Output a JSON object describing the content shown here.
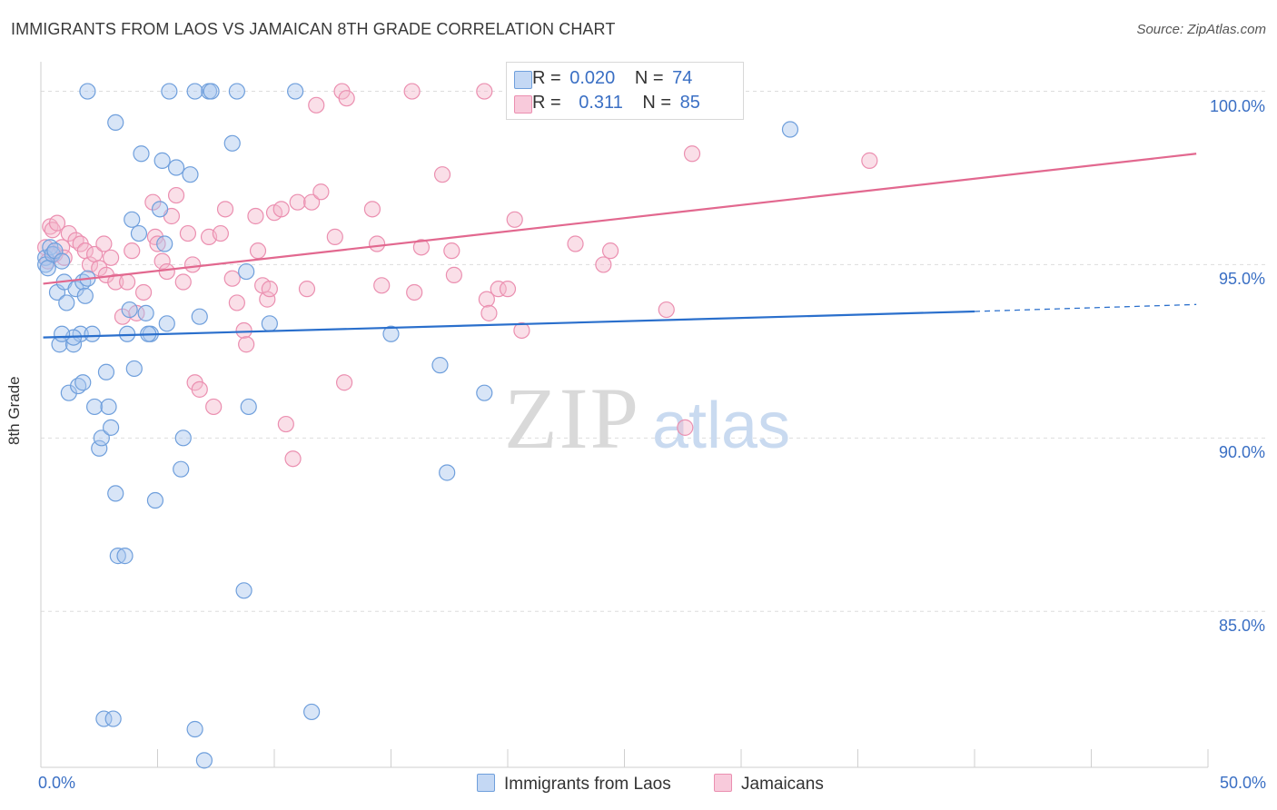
{
  "title": "IMMIGRANTS FROM LAOS VS JAMAICAN 8TH GRADE CORRELATION CHART",
  "source": "Source: ZipAtlas.com",
  "watermark": {
    "zip": "ZIP",
    "atlas": "atlas"
  },
  "legend_top": {
    "row1": {
      "r_label": "R =",
      "r_value": "0.020",
      "n_label": "N =",
      "n_value": "74"
    },
    "row2": {
      "r_label": "R =",
      "r_value": "0.311",
      "n_label": "N =",
      "n_value": "85"
    }
  },
  "colors": {
    "blue_fill": "#a9c6ee",
    "blue_stroke": "#6f9fdc",
    "blue_line": "#2a6fcc",
    "pink_fill": "#f5b8cc",
    "pink_stroke": "#eb8fb0",
    "pink_line": "#e2688f",
    "grid": "#dddddd",
    "tick_text": "#3a6fc4"
  },
  "chart_data": {
    "type": "scatter",
    "title": "IMMIGRANTS FROM LAOS VS JAMAICAN 8TH GRADE CORRELATION CHART",
    "xlabel": "",
    "ylabel": "8th Grade",
    "xlim": [
      0,
      50
    ],
    "ylim": [
      80.5,
      100.8
    ],
    "x_tick_labels": [
      {
        "value": 0,
        "label": "0.0%"
      },
      {
        "value": 50,
        "label": "50.0%"
      }
    ],
    "y_tick_labels": [
      {
        "value": 100,
        "label": "100.0%"
      },
      {
        "value": 95,
        "label": "95.0%"
      },
      {
        "value": 90,
        "label": "90.0%"
      },
      {
        "value": 85,
        "label": "85.0%"
      }
    ],
    "series": [
      {
        "name": "Immigrants from Laos",
        "color": "blue",
        "R": 0.02,
        "N": 74,
        "trend": {
          "x0": 0.1,
          "y0": 92.9,
          "x1": 40,
          "y1": 93.65,
          "dash_x1": 49.5,
          "dash_y1": 93.85
        },
        "points": [
          [
            0.2,
            95.2
          ],
          [
            0.2,
            95.0
          ],
          [
            0.3,
            94.9
          ],
          [
            0.4,
            95.5
          ],
          [
            0.5,
            95.3
          ],
          [
            0.6,
            95.4
          ],
          [
            0.7,
            94.2
          ],
          [
            0.8,
            92.7
          ],
          [
            0.9,
            95.1
          ],
          [
            1.0,
            94.5
          ],
          [
            1.1,
            93.9
          ],
          [
            1.2,
            91.3
          ],
          [
            1.4,
            92.7
          ],
          [
            1.5,
            94.3
          ],
          [
            1.6,
            91.5
          ],
          [
            1.7,
            93.0
          ],
          [
            1.8,
            94.5
          ],
          [
            1.8,
            91.6
          ],
          [
            1.9,
            94.1
          ],
          [
            2.0,
            94.6
          ],
          [
            2.2,
            93.0
          ],
          [
            2.3,
            90.9
          ],
          [
            2.5,
            89.7
          ],
          [
            2.6,
            90.0
          ],
          [
            2.8,
            91.9
          ],
          [
            2.9,
            90.9
          ],
          [
            3.0,
            90.3
          ],
          [
            3.2,
            88.4
          ],
          [
            3.3,
            86.6
          ],
          [
            2.7,
            81.9
          ],
          [
            3.1,
            81.9
          ],
          [
            3.6,
            86.6
          ],
          [
            3.7,
            93.0
          ],
          [
            3.8,
            93.7
          ],
          [
            3.9,
            96.3
          ],
          [
            4.0,
            92.0
          ],
          [
            4.2,
            95.9
          ],
          [
            4.3,
            98.2
          ],
          [
            4.5,
            93.6
          ],
          [
            4.7,
            93.0
          ],
          [
            4.9,
            88.2
          ],
          [
            5.1,
            96.6
          ],
          [
            5.2,
            98.0
          ],
          [
            5.3,
            95.6
          ],
          [
            5.4,
            93.3
          ],
          [
            5.5,
            100.0
          ],
          [
            5.8,
            97.8
          ],
          [
            6.0,
            89.1
          ],
          [
            6.1,
            90.0
          ],
          [
            6.4,
            97.6
          ],
          [
            6.6,
            81.6
          ],
          [
            6.8,
            93.5
          ],
          [
            7.0,
            80.7
          ],
          [
            7.2,
            100.0
          ],
          [
            7.3,
            100.0
          ],
          [
            8.2,
            98.5
          ],
          [
            8.4,
            100.0
          ],
          [
            8.7,
            85.6
          ],
          [
            8.8,
            94.8
          ],
          [
            8.9,
            90.9
          ],
          [
            9.8,
            93.3
          ],
          [
            10.9,
            100.0
          ],
          [
            11.6,
            82.1
          ],
          [
            15.0,
            93.0
          ],
          [
            17.4,
            89.0
          ],
          [
            17.1,
            92.1
          ],
          [
            19.0,
            91.3
          ],
          [
            32.1,
            98.9
          ],
          [
            3.2,
            99.1
          ],
          [
            2.0,
            100.0
          ],
          [
            1.4,
            92.9
          ],
          [
            0.9,
            93.0
          ],
          [
            4.6,
            93.0
          ],
          [
            6.6,
            100.0
          ]
        ]
      },
      {
        "name": "Jamaicans",
        "color": "pink",
        "R": 0.311,
        "N": 85,
        "trend": {
          "x0": 0.1,
          "y0": 94.45,
          "x1": 49.5,
          "y1": 98.2
        },
        "points": [
          [
            0.2,
            95.5
          ],
          [
            0.3,
            95.1
          ],
          [
            0.4,
            96.1
          ],
          [
            0.5,
            96.0
          ],
          [
            0.6,
            95.3
          ],
          [
            0.7,
            96.2
          ],
          [
            0.9,
            95.5
          ],
          [
            1.0,
            95.2
          ],
          [
            1.2,
            95.9
          ],
          [
            1.5,
            95.7
          ],
          [
            1.7,
            95.6
          ],
          [
            1.9,
            95.4
          ],
          [
            2.1,
            95.0
          ],
          [
            2.3,
            95.3
          ],
          [
            2.5,
            94.9
          ],
          [
            2.7,
            95.6
          ],
          [
            2.8,
            94.7
          ],
          [
            3.0,
            95.2
          ],
          [
            3.2,
            94.5
          ],
          [
            3.5,
            93.5
          ],
          [
            3.7,
            94.5
          ],
          [
            3.9,
            95.4
          ],
          [
            4.1,
            93.6
          ],
          [
            4.4,
            94.2
          ],
          [
            4.8,
            96.8
          ],
          [
            4.9,
            95.8
          ],
          [
            5.0,
            95.6
          ],
          [
            5.2,
            95.1
          ],
          [
            5.4,
            94.8
          ],
          [
            5.6,
            96.4
          ],
          [
            5.8,
            97.0
          ],
          [
            6.1,
            94.5
          ],
          [
            6.3,
            95.9
          ],
          [
            6.5,
            95.0
          ],
          [
            6.6,
            91.6
          ],
          [
            6.8,
            91.4
          ],
          [
            7.2,
            95.8
          ],
          [
            7.4,
            90.9
          ],
          [
            7.7,
            95.9
          ],
          [
            7.9,
            96.6
          ],
          [
            8.2,
            94.6
          ],
          [
            8.4,
            93.9
          ],
          [
            8.7,
            93.1
          ],
          [
            8.8,
            92.7
          ],
          [
            9.2,
            96.4
          ],
          [
            9.3,
            95.4
          ],
          [
            9.5,
            94.4
          ],
          [
            9.7,
            94.0
          ],
          [
            9.8,
            94.3
          ],
          [
            10.0,
            96.5
          ],
          [
            10.3,
            96.6
          ],
          [
            10.5,
            90.4
          ],
          [
            10.8,
            89.4
          ],
          [
            11.0,
            96.8
          ],
          [
            11.4,
            94.3
          ],
          [
            11.6,
            96.8
          ],
          [
            11.8,
            99.6
          ],
          [
            12.0,
            97.1
          ],
          [
            12.6,
            95.8
          ],
          [
            12.9,
            100.0
          ],
          [
            13.0,
            91.6
          ],
          [
            13.1,
            99.8
          ],
          [
            14.2,
            96.6
          ],
          [
            14.4,
            95.6
          ],
          [
            14.6,
            94.4
          ],
          [
            15.9,
            100.0
          ],
          [
            16.0,
            94.2
          ],
          [
            16.3,
            95.5
          ],
          [
            17.2,
            97.6
          ],
          [
            17.6,
            95.4
          ],
          [
            17.7,
            94.7
          ],
          [
            19.0,
            100.0
          ],
          [
            19.1,
            94.0
          ],
          [
            19.2,
            93.6
          ],
          [
            19.6,
            94.3
          ],
          [
            20.0,
            94.3
          ],
          [
            20.3,
            96.3
          ],
          [
            20.6,
            93.1
          ],
          [
            22.9,
            95.6
          ],
          [
            24.1,
            95.0
          ],
          [
            24.4,
            95.4
          ],
          [
            26.8,
            93.7
          ],
          [
            27.6,
            90.3
          ],
          [
            27.9,
            98.2
          ],
          [
            35.5,
            98.0
          ]
        ]
      }
    ]
  },
  "legend_bottom": [
    {
      "label": "Immigrants from Laos",
      "color": "blue"
    },
    {
      "label": "Jamaicans",
      "color": "pink"
    }
  ]
}
